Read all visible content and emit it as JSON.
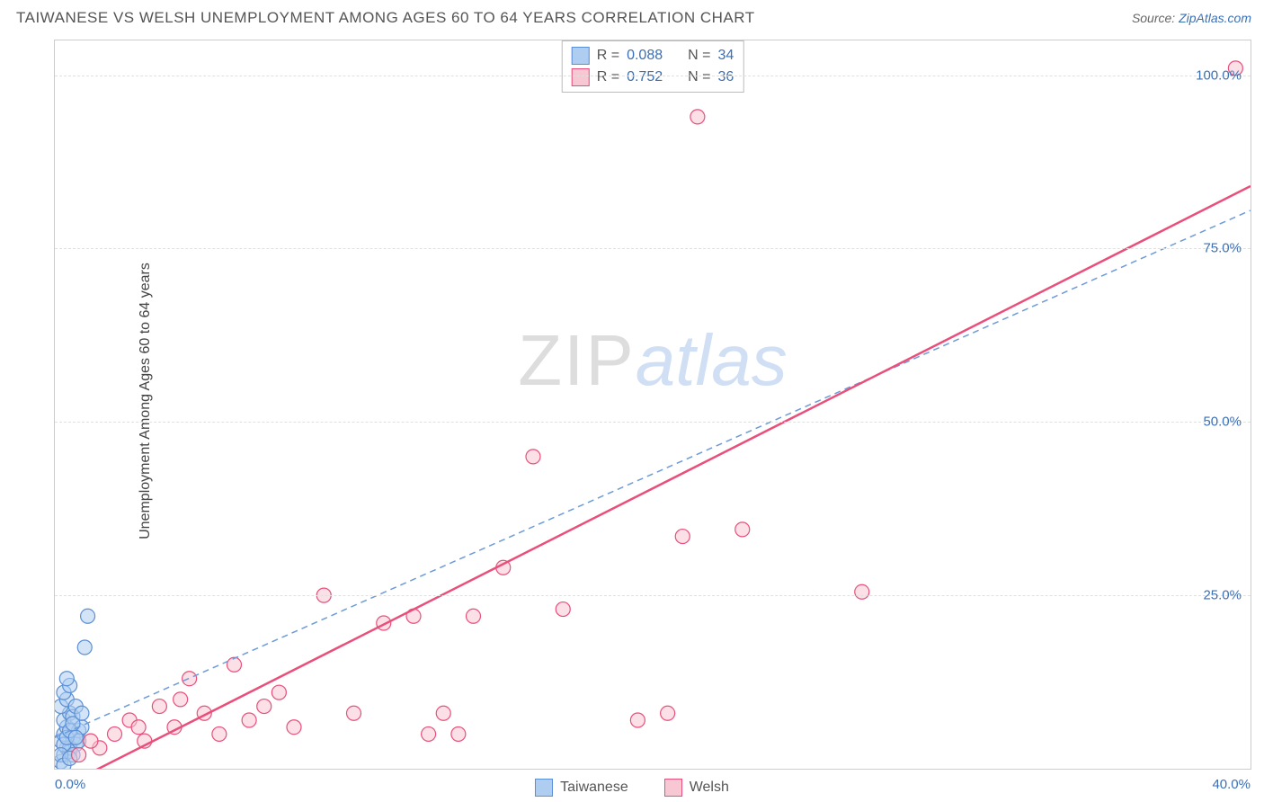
{
  "title": "TAIWANESE VS WELSH UNEMPLOYMENT AMONG AGES 60 TO 64 YEARS CORRELATION CHART",
  "source_label": "Source:",
  "source_name": "ZipAtlas.com",
  "ylabel": "Unemployment Among Ages 60 to 64 years",
  "watermark_zip": "ZIP",
  "watermark_atlas": "atlas",
  "chart": {
    "type": "scatter",
    "background_color": "#ffffff",
    "grid_color": "#e0e0e0",
    "axis_color": "#cccccc",
    "tick_color": "#3b6fb6",
    "xlim": [
      0,
      40
    ],
    "ylim": [
      0,
      105
    ],
    "xticks": [
      0,
      40
    ],
    "xtick_labels": [
      "0.0%",
      "40.0%"
    ],
    "yticks": [
      25,
      50,
      75,
      100
    ],
    "ytick_labels": [
      "25.0%",
      "50.0%",
      "75.0%",
      "100.0%"
    ],
    "marker_radius": 8,
    "marker_stroke_width": 1.2,
    "series": [
      {
        "name": "Taiwanese",
        "fill": "#aecdf0",
        "stroke": "#5b8fd6",
        "fill_opacity": 0.55,
        "points": [
          [
            0.2,
            1.0
          ],
          [
            0.3,
            2.0
          ],
          [
            0.4,
            3.0
          ],
          [
            0.2,
            4.0
          ],
          [
            0.5,
            2.5
          ],
          [
            0.3,
            5.0
          ],
          [
            0.6,
            4.5
          ],
          [
            0.4,
            6.0
          ],
          [
            0.7,
            3.5
          ],
          [
            0.3,
            7.0
          ],
          [
            0.5,
            8.0
          ],
          [
            0.2,
            9.0
          ],
          [
            0.8,
            5.5
          ],
          [
            0.4,
            10.0
          ],
          [
            0.6,
            7.5
          ],
          [
            0.3,
            11.0
          ],
          [
            0.9,
            6.0
          ],
          [
            0.5,
            12.0
          ],
          [
            0.7,
            9.0
          ],
          [
            0.4,
            13.0
          ],
          [
            0.5,
            3.0
          ],
          [
            0.6,
            2.0
          ],
          [
            0.8,
            4.0
          ],
          [
            0.3,
            3.5
          ],
          [
            0.4,
            4.5
          ],
          [
            0.5,
            5.5
          ],
          [
            0.2,
            2.0
          ],
          [
            0.6,
            6.5
          ],
          [
            0.3,
            0.5
          ],
          [
            0.9,
            8.0
          ],
          [
            1.0,
            17.5
          ],
          [
            1.1,
            22.0
          ],
          [
            0.7,
            4.5
          ],
          [
            0.5,
            1.5
          ]
        ],
        "trend": {
          "x1": 0,
          "y1": 4.5,
          "x2": 40,
          "y2": 80.5,
          "stroke": "#6d9bd8",
          "dash": "7 5",
          "width": 1.5
        }
      },
      {
        "name": "Welsh",
        "fill": "#f8c7d4",
        "stroke": "#e94f7a",
        "fill_opacity": 0.55,
        "points": [
          [
            0.8,
            2.0
          ],
          [
            1.5,
            3.0
          ],
          [
            2.0,
            5.0
          ],
          [
            2.5,
            7.0
          ],
          [
            3.0,
            4.0
          ],
          [
            3.5,
            9.0
          ],
          [
            4.0,
            6.0
          ],
          [
            4.5,
            13.0
          ],
          [
            5.0,
            8.0
          ],
          [
            5.5,
            5.0
          ],
          [
            6.0,
            15.0
          ],
          [
            6.5,
            7.0
          ],
          [
            7.0,
            9.0
          ],
          [
            8.0,
            6.0
          ],
          [
            9.0,
            25.0
          ],
          [
            10.0,
            8.0
          ],
          [
            11.0,
            21.0
          ],
          [
            12.0,
            22.0
          ],
          [
            12.5,
            5.0
          ],
          [
            13.0,
            8.0
          ],
          [
            13.5,
            5.0
          ],
          [
            14.0,
            22.0
          ],
          [
            15.0,
            29.0
          ],
          [
            16.0,
            45.0
          ],
          [
            17.0,
            23.0
          ],
          [
            19.5,
            7.0
          ],
          [
            20.5,
            8.0
          ],
          [
            21.0,
            33.5
          ],
          [
            23.0,
            34.5
          ],
          [
            21.5,
            94.0
          ],
          [
            27.0,
            25.5
          ],
          [
            39.5,
            101.0
          ],
          [
            1.2,
            4.0
          ],
          [
            2.8,
            6.0
          ],
          [
            4.2,
            10.0
          ],
          [
            7.5,
            11.0
          ]
        ],
        "trend": {
          "x1": 1,
          "y1": -1,
          "x2": 40,
          "y2": 84,
          "stroke": "#e94f7a",
          "dash": "",
          "width": 2.5
        }
      }
    ]
  },
  "stats": [
    {
      "swatch_fill": "#aecdf0",
      "swatch_stroke": "#5b8fd6",
      "r_label": "R =",
      "r": "0.088",
      "n_label": "N =",
      "n": "34"
    },
    {
      "swatch_fill": "#f8c7d4",
      "swatch_stroke": "#e94f7a",
      "r_label": "R =",
      "r": "0.752",
      "n_label": "N =",
      "n": "36"
    }
  ],
  "legend": [
    {
      "swatch_fill": "#aecdf0",
      "swatch_stroke": "#5b8fd6",
      "label": "Taiwanese"
    },
    {
      "swatch_fill": "#f8c7d4",
      "swatch_stroke": "#e94f7a",
      "label": "Welsh"
    }
  ]
}
